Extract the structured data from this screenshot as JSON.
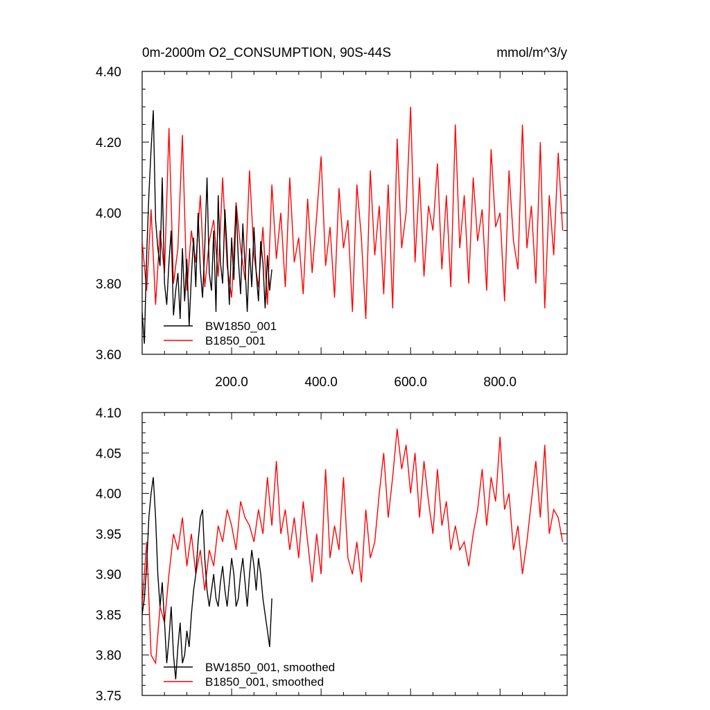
{
  "chart_data": [
    {
      "type": "line",
      "title": "0m-2000m O2_CONSUMPTION, 90S-44S",
      "units": "mmol/m^3/y",
      "xlim": [
        0,
        950
      ],
      "ylim": [
        3.6,
        4.4
      ],
      "xticks": [
        200,
        400,
        600,
        800
      ],
      "xtick_labels": [
        "200.0",
        "400.0",
        "600.0",
        "800.0"
      ],
      "yticks": [
        3.6,
        3.8,
        4.0,
        4.2,
        4.4
      ],
      "ytick_labels": [
        "3.60",
        "3.80",
        "4.00",
        "4.20",
        "4.40"
      ],
      "legend_position": "bottom-left",
      "series": [
        {
          "name": "BW1850_001",
          "color": "#000000",
          "x": [
            0,
            5,
            10,
            15,
            20,
            25,
            30,
            35,
            40,
            45,
            50,
            55,
            60,
            65,
            70,
            75,
            80,
            85,
            90,
            95,
            100,
            105,
            110,
            115,
            120,
            125,
            130,
            135,
            140,
            145,
            150,
            155,
            160,
            165,
            170,
            175,
            180,
            185,
            190,
            195,
            200,
            205,
            210,
            215,
            220,
            225,
            230,
            235,
            240,
            245,
            250,
            255,
            260,
            265,
            270,
            275,
            280,
            285,
            290
          ],
          "values": [
            3.72,
            3.63,
            3.88,
            4.05,
            4.18,
            4.29,
            3.98,
            3.9,
            3.85,
            4.1,
            3.8,
            3.74,
            3.86,
            3.95,
            3.71,
            3.78,
            3.83,
            3.7,
            3.9,
            3.75,
            3.87,
            3.68,
            3.82,
            3.93,
            3.79,
            4.0,
            3.84,
            3.76,
            3.9,
            4.1,
            3.83,
            3.78,
            3.95,
            3.72,
            4.05,
            3.86,
            3.8,
            4.01,
            3.89,
            3.74,
            3.93,
            3.81,
            4.02,
            3.87,
            3.77,
            3.97,
            3.85,
            3.72,
            3.9,
            3.79,
            3.96,
            3.83,
            3.75,
            3.92,
            3.86,
            3.73,
            3.88,
            3.78,
            3.84
          ]
        },
        {
          "name": "B1850_001",
          "color": "#ff0000",
          "x": [
            0,
            10,
            20,
            30,
            40,
            50,
            60,
            70,
            80,
            90,
            100,
            110,
            120,
            130,
            140,
            150,
            160,
            170,
            180,
            190,
            200,
            210,
            220,
            230,
            240,
            250,
            260,
            270,
            280,
            290,
            300,
            310,
            320,
            330,
            340,
            350,
            360,
            370,
            380,
            390,
            400,
            410,
            420,
            430,
            440,
            450,
            460,
            470,
            480,
            490,
            500,
            510,
            520,
            530,
            540,
            550,
            560,
            570,
            580,
            590,
            600,
            610,
            620,
            630,
            640,
            650,
            660,
            670,
            680,
            690,
            700,
            710,
            720,
            730,
            740,
            750,
            760,
            770,
            780,
            790,
            800,
            810,
            820,
            830,
            840,
            850,
            860,
            870,
            880,
            890,
            900,
            910,
            920,
            930,
            940
          ],
          "values": [
            3.92,
            3.78,
            4.01,
            3.74,
            3.95,
            3.83,
            4.24,
            3.8,
            3.9,
            4.22,
            3.78,
            3.95,
            3.86,
            4.05,
            3.79,
            3.92,
            3.98,
            3.82,
            4.1,
            3.85,
            3.76,
            4.03,
            3.9,
            3.81,
            4.12,
            3.88,
            3.79,
            3.96,
            3.74,
            4.08,
            3.87,
            4.0,
            3.79,
            4.1,
            3.86,
            3.93,
            3.77,
            4.04,
            3.83,
            3.99,
            4.16,
            3.85,
            3.96,
            3.76,
            4.07,
            3.9,
            3.98,
            3.72,
            4.08,
            3.93,
            3.7,
            4.12,
            3.88,
            4.02,
            3.77,
            4.08,
            3.73,
            4.21,
            3.9,
            4.0,
            4.3,
            3.86,
            4.1,
            3.82,
            4.02,
            3.95,
            4.14,
            3.84,
            4.05,
            3.79,
            4.25,
            3.9,
            4.05,
            3.8,
            4.1,
            3.92,
            4.01,
            3.78,
            4.18,
            3.96,
            4.0,
            3.75,
            4.12,
            3.92,
            3.84,
            4.25,
            3.9,
            4.02,
            3.8,
            4.2,
            3.73,
            4.05,
            3.88,
            4.17,
            3.95
          ]
        }
      ]
    },
    {
      "type": "line",
      "title": "",
      "xlim": [
        0,
        950
      ],
      "ylim": [
        3.75,
        4.1
      ],
      "yticks": [
        3.75,
        3.8,
        3.85,
        3.9,
        3.95,
        4.0,
        4.05,
        4.1
      ],
      "ytick_labels": [
        "3.75",
        "3.80",
        "3.85",
        "3.90",
        "3.95",
        "4.00",
        "4.05",
        "4.10"
      ],
      "legend_position": "bottom-left",
      "series": [
        {
          "name": "BW1850_001, smoothed",
          "color": "#000000",
          "x": [
            0,
            5,
            10,
            15,
            20,
            25,
            30,
            35,
            40,
            45,
            50,
            55,
            60,
            65,
            70,
            75,
            80,
            85,
            90,
            95,
            100,
            105,
            110,
            115,
            120,
            125,
            130,
            135,
            140,
            145,
            150,
            155,
            160,
            165,
            170,
            175,
            180,
            185,
            190,
            195,
            200,
            205,
            210,
            215,
            220,
            225,
            230,
            235,
            240,
            245,
            250,
            255,
            260,
            265,
            270,
            275,
            280,
            285,
            290
          ],
          "values": [
            3.85,
            3.87,
            3.91,
            3.97,
            4.0,
            4.02,
            3.97,
            3.9,
            3.86,
            3.89,
            3.84,
            3.79,
            3.82,
            3.86,
            3.8,
            3.77,
            3.81,
            3.84,
            3.79,
            3.8,
            3.83,
            3.81,
            3.85,
            3.88,
            3.9,
            3.94,
            3.97,
            3.98,
            3.92,
            3.88,
            3.86,
            3.88,
            3.9,
            3.87,
            3.86,
            3.89,
            3.91,
            3.88,
            3.86,
            3.89,
            3.92,
            3.9,
            3.86,
            3.87,
            3.9,
            3.92,
            3.89,
            3.86,
            3.9,
            3.93,
            3.91,
            3.88,
            3.92,
            3.9,
            3.87,
            3.85,
            3.83,
            3.81,
            3.87
          ]
        },
        {
          "name": "B1850_001, smoothed",
          "color": "#ff0000",
          "x": [
            0,
            10,
            20,
            30,
            40,
            50,
            60,
            70,
            80,
            90,
            100,
            110,
            120,
            130,
            140,
            150,
            160,
            170,
            180,
            190,
            200,
            210,
            220,
            230,
            240,
            250,
            260,
            270,
            280,
            290,
            300,
            310,
            320,
            330,
            340,
            350,
            360,
            370,
            380,
            390,
            400,
            410,
            420,
            430,
            440,
            450,
            460,
            470,
            480,
            490,
            500,
            510,
            520,
            530,
            540,
            550,
            560,
            570,
            580,
            590,
            600,
            610,
            620,
            630,
            640,
            650,
            660,
            670,
            680,
            690,
            700,
            710,
            720,
            730,
            740,
            750,
            760,
            770,
            780,
            790,
            800,
            810,
            820,
            830,
            840,
            850,
            860,
            870,
            880,
            890,
            900,
            910,
            920,
            930,
            940
          ],
          "values": [
            3.86,
            3.94,
            3.8,
            3.79,
            3.86,
            3.84,
            3.9,
            3.95,
            3.93,
            3.97,
            3.91,
            3.95,
            3.9,
            3.93,
            3.88,
            3.93,
            3.91,
            3.96,
            3.94,
            3.98,
            3.96,
            3.93,
            3.99,
            3.97,
            3.96,
            3.94,
            3.98,
            3.95,
            4.02,
            3.96,
            4.04,
            3.95,
            3.98,
            3.93,
            3.97,
            3.92,
            3.99,
            3.94,
            3.89,
            3.95,
            3.9,
            4.03,
            3.92,
            3.96,
            3.93,
            4.02,
            3.92,
            3.9,
            3.94,
            3.89,
            3.98,
            3.92,
            3.94,
            4.0,
            4.05,
            3.97,
            4.02,
            4.08,
            4.03,
            4.06,
            4.0,
            4.05,
            3.97,
            4.04,
            3.99,
            3.95,
            4.03,
            3.96,
            3.99,
            3.93,
            3.96,
            3.93,
            3.94,
            3.91,
            3.95,
            3.98,
            4.03,
            3.96,
            4.02,
            3.99,
            4.07,
            3.98,
            4.0,
            3.93,
            3.96,
            3.9,
            3.94,
            3.99,
            4.04,
            3.97,
            4.06,
            3.95,
            3.98,
            3.97,
            3.94
          ]
        }
      ]
    }
  ]
}
